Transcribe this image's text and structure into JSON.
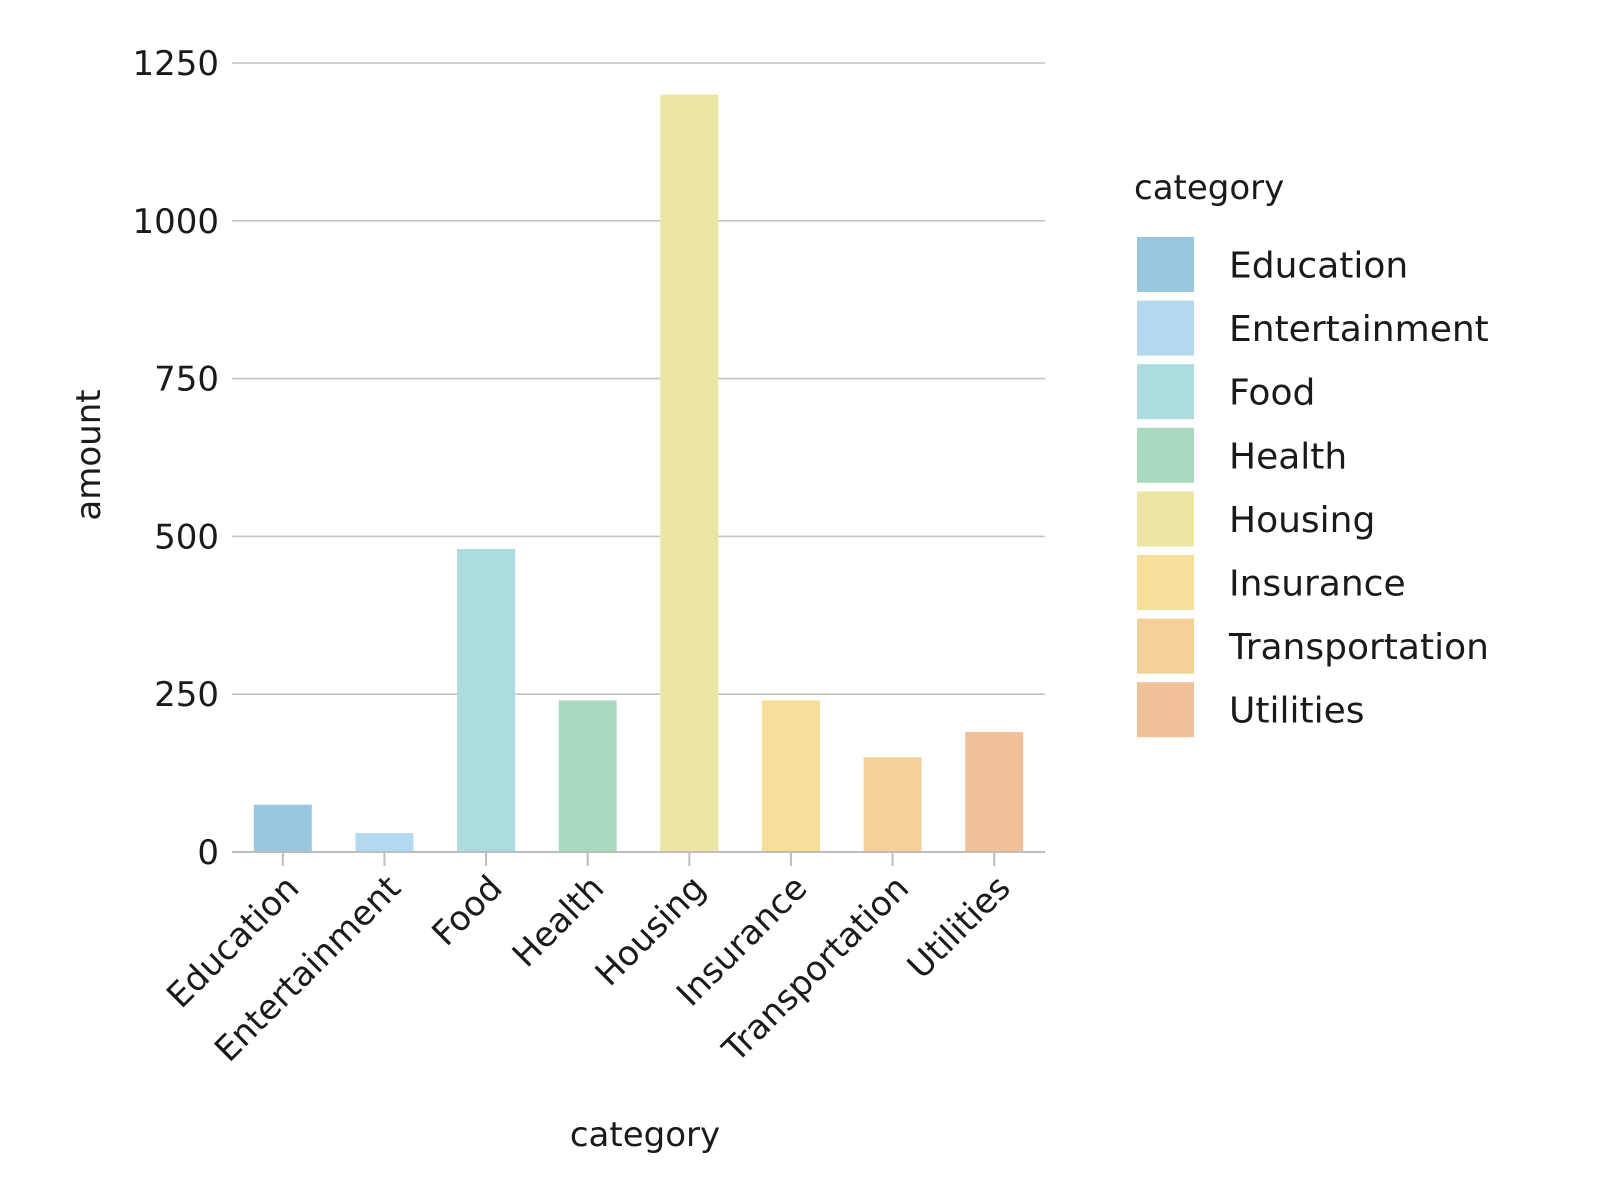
{
  "chart_data": {
    "type": "bar",
    "categories": [
      "Education",
      "Entertainment",
      "Food",
      "Health",
      "Housing",
      "Insurance",
      "Transportation",
      "Utilities"
    ],
    "values": [
      75,
      30,
      480,
      240,
      1200,
      240,
      150,
      190
    ],
    "xlabel": "category",
    "ylabel": "amount",
    "ylim": [
      0,
      1250
    ],
    "yticks": [
      0,
      250,
      500,
      750,
      1000,
      1250
    ],
    "ytick_labels": [
      "0",
      "250",
      "500",
      "750",
      "1000",
      "1250"
    ],
    "grid": "horizontal",
    "legend": {
      "title": "category",
      "position": "right",
      "entries": [
        "Education",
        "Entertainment",
        "Food",
        "Health",
        "Housing",
        "Insurance",
        "Transportation",
        "Utilities"
      ]
    },
    "colors": [
      "#9ac7e0",
      "#b3d9ef",
      "#addcdf",
      "#a9dac1",
      "#ede5a3",
      "#f6de98",
      "#f4d098",
      "#efc09a"
    ]
  }
}
